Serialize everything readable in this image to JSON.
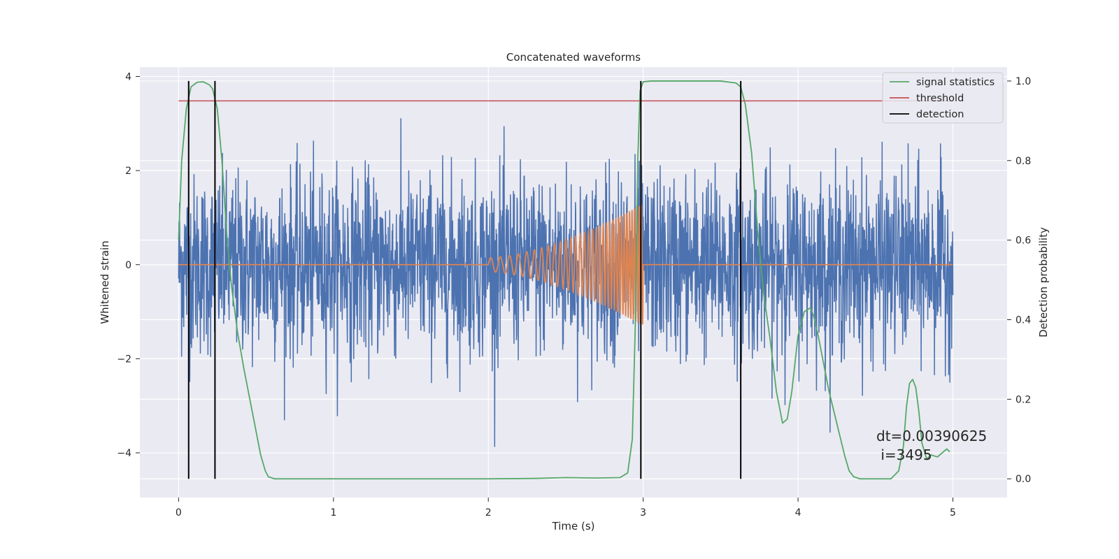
{
  "chart_data": {
    "type": "line",
    "title": "Concatenated waveforms",
    "xlabel": "Time (s)",
    "ylabel": "Whitened strain",
    "ylabel_right": "Detection probability",
    "xlim": [
      -0.25,
      5.35
    ],
    "ylim": [
      -4.95,
      4.2
    ],
    "ylim_right": [
      -0.047,
      1.035
    ],
    "xticks": [
      0,
      1,
      2,
      3,
      4,
      5
    ],
    "yticks": [
      4,
      2,
      0,
      -2,
      -4
    ],
    "yticks_labels": [
      "4",
      "2",
      "0",
      "−2",
      "−4"
    ],
    "yticks_right": [
      1.0,
      0.8,
      0.6,
      0.4,
      0.2,
      0.0
    ],
    "yticks_right_labels": [
      "1.0",
      "0.8",
      "0.6",
      "0.4",
      "0.2",
      "0.0"
    ],
    "grid": true,
    "legend_position": "top-right",
    "legend": [
      "signal statistics",
      "threshold",
      "detection"
    ],
    "colors": {
      "strain": "#4c72b0",
      "waveform": "#dd8452",
      "signal_statistics": "#55a868",
      "threshold": "#c44e52",
      "detection": "#000000",
      "background": "#eaeaf2"
    },
    "strain_noise": {
      "x_range": [
        0,
        5
      ],
      "dt": 0.00390625,
      "approx_sigma": 1.0,
      "note_values": "dense whitened noise, peaks near ±3.7"
    },
    "chirp": {
      "t_start": 2.0,
      "t_end": 3.0,
      "amp_start": 0.15,
      "amp_end": 1.3,
      "freq_start": 16,
      "freq_end": 70
    },
    "signal_statistics": {
      "x": [
        0,
        0.02,
        0.05,
        0.08,
        0.12,
        0.16,
        0.2,
        0.22,
        0.25,
        0.28,
        0.31,
        0.34,
        0.38,
        0.42,
        0.47,
        0.5,
        0.53,
        0.56,
        0.58,
        0.62,
        1.0,
        1.5,
        2.0,
        2.3,
        2.5,
        2.7,
        2.85,
        2.9,
        2.93,
        2.95,
        2.965,
        2.98,
        3.0,
        3.05,
        3.3,
        3.5,
        3.6,
        3.63,
        3.66,
        3.7,
        3.74,
        3.78,
        3.82,
        3.86,
        3.9,
        3.93,
        3.96,
        4.0,
        4.04,
        4.08,
        4.1,
        4.13,
        4.16,
        4.2,
        4.25,
        4.3,
        4.33,
        4.36,
        4.4,
        4.5,
        4.6,
        4.65,
        4.68,
        4.7,
        4.72,
        4.74,
        4.76,
        4.78,
        4.8,
        4.83,
        4.86,
        4.9,
        4.93,
        4.96,
        4.98
      ],
      "y": [
        0.6,
        0.8,
        0.93,
        0.985,
        0.997,
        0.998,
        0.99,
        0.98,
        0.93,
        0.8,
        0.62,
        0.49,
        0.37,
        0.28,
        0.18,
        0.12,
        0.06,
        0.02,
        0.005,
        0.0,
        0.0,
        0.0,
        0.0,
        0.001,
        0.003,
        0.002,
        0.003,
        0.015,
        0.1,
        0.4,
        0.8,
        0.975,
        0.998,
        1.0,
        1.0,
        1.0,
        0.995,
        0.985,
        0.94,
        0.82,
        0.62,
        0.46,
        0.35,
        0.22,
        0.14,
        0.15,
        0.22,
        0.36,
        0.42,
        0.43,
        0.41,
        0.36,
        0.3,
        0.22,
        0.14,
        0.06,
        0.02,
        0.005,
        0.0,
        0.0,
        0.0,
        0.02,
        0.08,
        0.18,
        0.24,
        0.25,
        0.23,
        0.17,
        0.09,
        0.05,
        0.06,
        0.055,
        0.065,
        0.075,
        0.068
      ]
    },
    "threshold": {
      "value": 0.95,
      "x_range": [
        0,
        5
      ]
    },
    "detections_x": [
      0.065,
      0.235,
      2.985,
      3.63
    ],
    "annotation": {
      "line1": "dt=0.00390625",
      "line2": " i=3495"
    }
  }
}
